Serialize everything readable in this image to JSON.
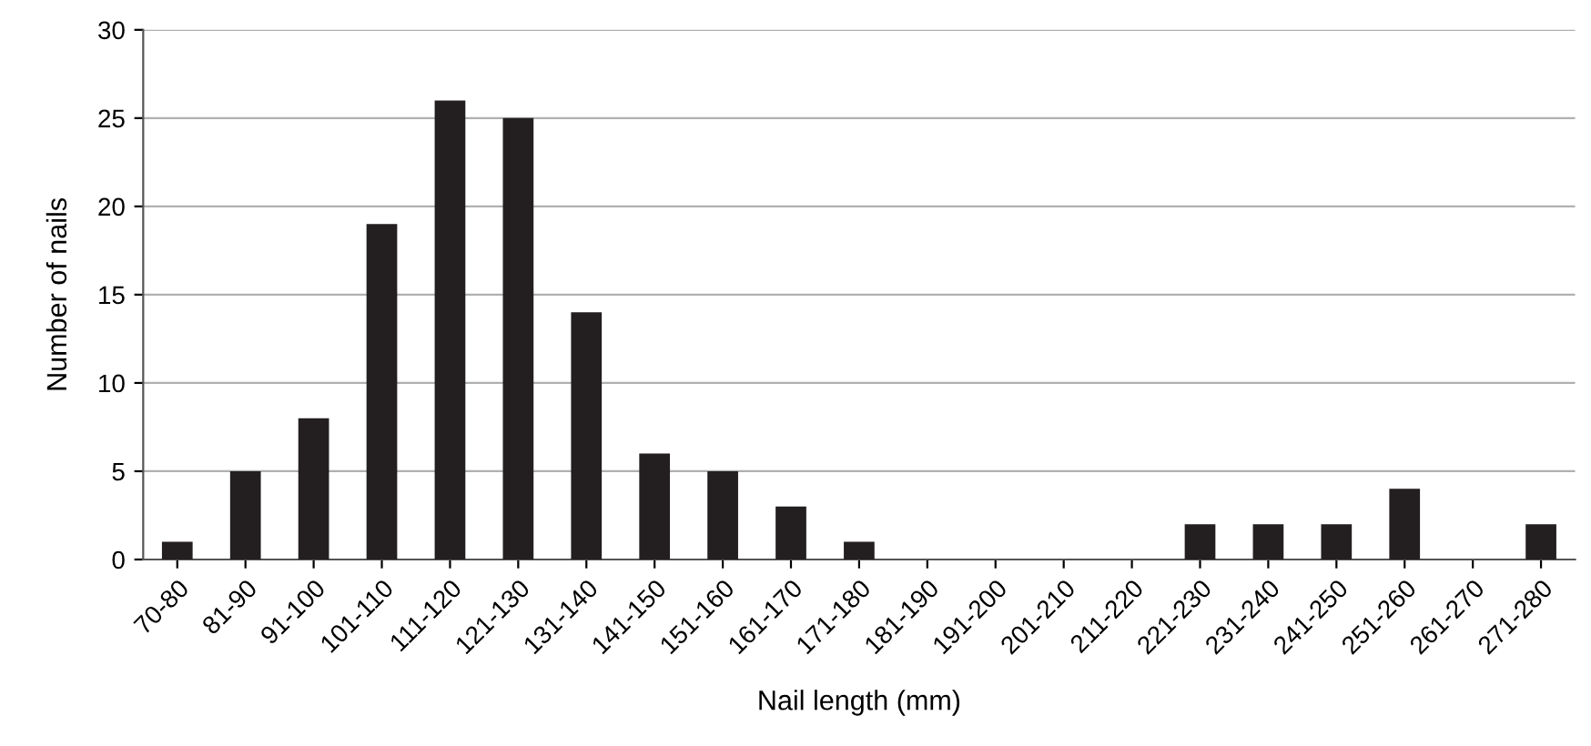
{
  "chart_data": {
    "type": "bar",
    "xlabel": "Nail length (mm)",
    "ylabel": "Number of nails",
    "categories": [
      "70-80",
      "81-90",
      "91-100",
      "101-110",
      "111-120",
      "121-130",
      "131-140",
      "141-150",
      "151-160",
      "161-170",
      "171-180",
      "181-190",
      "191-200",
      "201-210",
      "211-220",
      "221-230",
      "231-240",
      "241-250",
      "251-260",
      "261-270",
      "271-280"
    ],
    "values": [
      1,
      5,
      8,
      19,
      26,
      25,
      14,
      6,
      5,
      3,
      1,
      0,
      0,
      0,
      0,
      2,
      2,
      2,
      4,
      0,
      2
    ],
    "color": "#231f20",
    "ylim": [
      0,
      30
    ],
    "yticks": [
      0,
      5,
      10,
      15,
      20,
      25,
      30
    ],
    "grid": "y"
  }
}
